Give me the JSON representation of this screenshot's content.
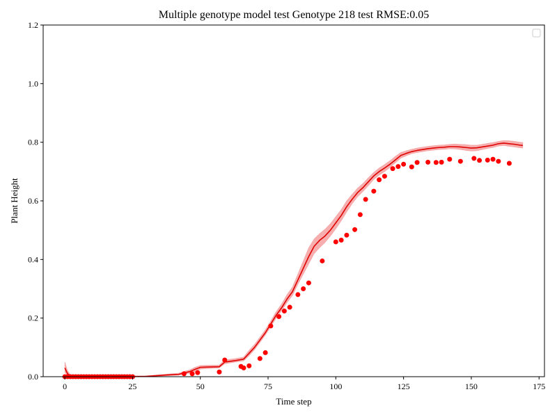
{
  "chart_data": {
    "type": "line",
    "title": "Multiple genotype model test Genotype 218 test RMSE:0.05",
    "xlabel": "Time step",
    "ylabel": "Plant Height",
    "xlim": [
      -8,
      177
    ],
    "ylim": [
      0,
      1.2
    ],
    "x_ticks": [
      0,
      25,
      50,
      75,
      100,
      125,
      150,
      175
    ],
    "y_ticks": [
      0.0,
      0.2,
      0.4,
      0.6,
      0.8,
      1.0,
      1.2
    ],
    "x_tick_labels": [
      "0",
      "25",
      "50",
      "75",
      "100",
      "125",
      "150",
      "175"
    ],
    "y_tick_labels": [
      "0.0",
      "0.2",
      "0.4",
      "0.6",
      "0.8",
      "1.0",
      "1.2"
    ],
    "legend": {
      "placement": "top-right",
      "entries": []
    },
    "grid": false,
    "colors": {
      "line": "#e00000",
      "band": "#f4a0a0",
      "points": "#ff0000"
    },
    "series": [
      {
        "kind": "line",
        "x": [
          0,
          1,
          2,
          4,
          10,
          20,
          30,
          38,
          42,
          44,
          46,
          48,
          50,
          53,
          57,
          59,
          63,
          66,
          68,
          70,
          72,
          74,
          76,
          78,
          80,
          82,
          84,
          86,
          88,
          90,
          92,
          94,
          96,
          98,
          100,
          102,
          104,
          106,
          108,
          110,
          112,
          114,
          116,
          118,
          120,
          122,
          124,
          126,
          128,
          130,
          132,
          134,
          136,
          138,
          140,
          142,
          144,
          146,
          148,
          150,
          152,
          154,
          156,
          158,
          160,
          162,
          164,
          166,
          168,
          169
        ],
        "y": [
          0.03,
          0.01,
          0.003,
          0.0,
          0.0,
          0.0,
          0.001,
          0.006,
          0.008,
          0.013,
          0.017,
          0.025,
          0.032,
          0.033,
          0.034,
          0.05,
          0.055,
          0.06,
          0.08,
          0.1,
          0.125,
          0.15,
          0.18,
          0.21,
          0.235,
          0.265,
          0.29,
          0.33,
          0.37,
          0.41,
          0.445,
          0.465,
          0.48,
          0.5,
          0.525,
          0.55,
          0.58,
          0.605,
          0.628,
          0.645,
          0.665,
          0.685,
          0.7,
          0.712,
          0.725,
          0.74,
          0.755,
          0.762,
          0.768,
          0.772,
          0.775,
          0.778,
          0.78,
          0.782,
          0.783,
          0.785,
          0.785,
          0.784,
          0.782,
          0.78,
          0.781,
          0.784,
          0.787,
          0.79,
          0.795,
          0.797,
          0.795,
          0.793,
          0.79,
          0.789
        ],
        "band_lower": [
          0.015,
          0.003,
          0.0,
          0.0,
          0.0,
          0.0,
          0.0,
          0.003,
          0.005,
          0.008,
          0.012,
          0.018,
          0.026,
          0.028,
          0.03,
          0.044,
          0.05,
          0.054,
          0.072,
          0.092,
          0.117,
          0.142,
          0.171,
          0.2,
          0.225,
          0.253,
          0.277,
          0.315,
          0.35,
          0.385,
          0.42,
          0.44,
          0.458,
          0.48,
          0.505,
          0.532,
          0.562,
          0.59,
          0.614,
          0.632,
          0.652,
          0.673,
          0.688,
          0.7,
          0.714,
          0.73,
          0.746,
          0.754,
          0.761,
          0.765,
          0.768,
          0.771,
          0.773,
          0.775,
          0.776,
          0.778,
          0.777,
          0.775,
          0.772,
          0.77,
          0.771,
          0.775,
          0.779,
          0.782,
          0.787,
          0.789,
          0.786,
          0.784,
          0.781,
          0.78
        ],
        "band_upper": [
          0.05,
          0.02,
          0.008,
          0.003,
          0.002,
          0.002,
          0.003,
          0.009,
          0.012,
          0.018,
          0.023,
          0.032,
          0.038,
          0.039,
          0.04,
          0.057,
          0.062,
          0.067,
          0.09,
          0.11,
          0.135,
          0.16,
          0.19,
          0.222,
          0.248,
          0.28,
          0.306,
          0.35,
          0.395,
          0.44,
          0.47,
          0.488,
          0.503,
          0.522,
          0.546,
          0.57,
          0.6,
          0.622,
          0.643,
          0.659,
          0.679,
          0.697,
          0.712,
          0.724,
          0.737,
          0.752,
          0.765,
          0.771,
          0.776,
          0.78,
          0.783,
          0.786,
          0.788,
          0.79,
          0.791,
          0.793,
          0.794,
          0.793,
          0.792,
          0.79,
          0.79,
          0.793,
          0.796,
          0.799,
          0.803,
          0.806,
          0.805,
          0.803,
          0.8,
          0.799
        ]
      },
      {
        "kind": "scatter",
        "x": [
          0,
          1,
          2,
          3,
          4,
          5,
          6,
          7,
          8,
          9,
          10,
          11,
          12,
          13,
          14,
          15,
          16,
          17,
          18,
          19,
          20,
          21,
          22,
          23,
          24,
          25,
          44,
          47,
          49,
          57,
          59,
          65,
          66,
          68,
          72,
          74,
          76,
          79,
          81,
          83,
          86,
          88,
          90,
          95,
          100,
          102,
          104,
          107,
          109,
          111,
          114,
          116,
          118,
          121,
          123,
          125,
          128,
          130,
          134,
          137,
          139,
          142,
          146,
          151,
          153,
          156,
          158,
          160,
          164
        ],
        "y": [
          0.0,
          0.0,
          0.0,
          0.0,
          0.0,
          0.0,
          0.0,
          0.0,
          0.0,
          0.0,
          0.0,
          0.0,
          0.0,
          0.0,
          0.0,
          0.0,
          0.0,
          0.0,
          0.0,
          0.0,
          0.0,
          0.0,
          0.0,
          0.0,
          0.0,
          0.0,
          0.01,
          0.01,
          0.014,
          0.016,
          0.057,
          0.035,
          0.03,
          0.037,
          0.062,
          0.082,
          0.173,
          0.205,
          0.224,
          0.237,
          0.28,
          0.3,
          0.32,
          0.395,
          0.46,
          0.466,
          0.483,
          0.502,
          0.553,
          0.605,
          0.633,
          0.672,
          0.684,
          0.71,
          0.717,
          0.725,
          0.716,
          0.731,
          0.732,
          0.731,
          0.732,
          0.742,
          0.735,
          0.745,
          0.738,
          0.739,
          0.742,
          0.735,
          0.728
        ]
      }
    ]
  }
}
